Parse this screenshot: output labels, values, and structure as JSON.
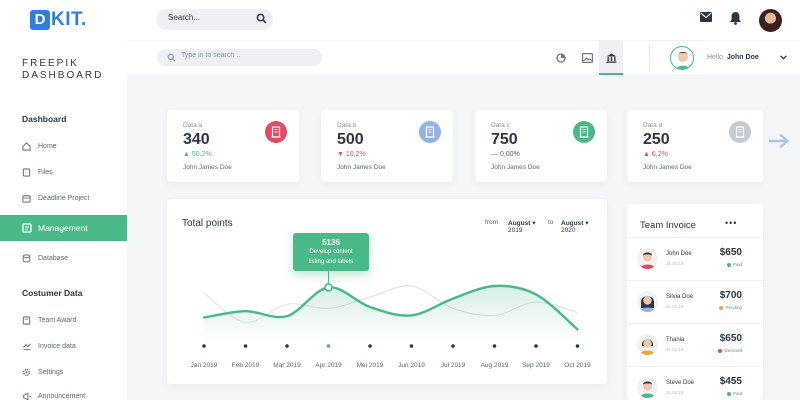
{
  "colors": {
    "accent": "#49b987",
    "brand": "#2f7de1",
    "danger": "#e8495f",
    "warning": "#f0a733",
    "info": "#8fb3e8"
  },
  "header": {
    "logo": "DKIT.",
    "search_placeholder": "Search..."
  },
  "sidebar": {
    "brand_line1": "FREEPIK",
    "brand_line2": "DASHBOARD",
    "section1": "Dashboard",
    "items1": [
      {
        "label": "Home",
        "icon": "home-icon"
      },
      {
        "label": "Files",
        "icon": "files-icon"
      },
      {
        "label": "Deadline Project",
        "icon": "calendar-icon"
      },
      {
        "label": "Management",
        "icon": "management-icon"
      },
      {
        "label": "Database",
        "icon": "database-icon"
      }
    ],
    "section2": "Costumer Data",
    "items2": [
      {
        "label": "Team Award",
        "icon": "award-icon"
      },
      {
        "label": "Invoice data",
        "icon": "invoice-icon"
      },
      {
        "label": "Settings",
        "icon": "gear-icon"
      },
      {
        "label": "Announcement",
        "icon": "megaphone-icon"
      }
    ]
  },
  "subheader": {
    "search_placeholder": "Type in to search ..",
    "greeting": "Hello,",
    "user_name": "John Doe"
  },
  "stats": [
    {
      "label": "Data a",
      "value": "340",
      "change": "50,2%",
      "direction": "up",
      "owner": "John James Doe",
      "color": "#e8495f"
    },
    {
      "label": "Data b",
      "value": "500",
      "change": "10,2%",
      "direction": "down",
      "owner": "John James Doe",
      "color": "#8fb3e8"
    },
    {
      "label": "Data c",
      "value": "750",
      "change": "0,00%",
      "direction": "flat",
      "owner": "John James Doe",
      "color": "#49b987"
    },
    {
      "label": "Data d",
      "value": "250",
      "change": "6,2%",
      "direction": "up",
      "owner": "John James Doe",
      "color": "#c5cbd3"
    }
  ],
  "chart": {
    "title": "Total points",
    "from_label": "from",
    "from_month": "August",
    "from_year": "2019",
    "to_label": "to",
    "to_month": "August",
    "to_year": "2020",
    "tooltip_value": "5136",
    "tooltip_line1": "Develop content",
    "tooltip_line2": "listing and labels"
  },
  "chart_data": {
    "type": "line",
    "categories": [
      "Jan 2019",
      "Feb 2019",
      "Mar 2019",
      "Apr 2019",
      "Mei 2019",
      "Jun 2019",
      "Jul 2019",
      "Aug 2019",
      "Sep 2019",
      "Oct 2019"
    ],
    "series": [
      {
        "values": [
          35,
          44,
          37,
          78,
          50,
          38,
          62,
          80,
          68,
          18
        ]
      },
      {
        "values": [
          70,
          28,
          54,
          48,
          64,
          80,
          48,
          38,
          57,
          42
        ]
      }
    ],
    "highlight_index": 3,
    "ylim": [
      0,
      100
    ],
    "grid": false,
    "legend": "none"
  },
  "team": {
    "title": "Team Invoice",
    "more": "•••",
    "rows": [
      {
        "name": "John Doe",
        "date": "21.01.19",
        "amount": "$650",
        "status": "Paid",
        "status_color": "#49b987"
      },
      {
        "name": "Silvia Doe",
        "date": "21.01.19",
        "amount": "$700",
        "status": "Pending",
        "status_color": "#f0a733"
      },
      {
        "name": "Thania",
        "date": "21.01.19",
        "amount": "$650",
        "status": "Declined",
        "status_color": "#e8495f"
      },
      {
        "name": "Steve Doe",
        "date": "21.01.19",
        "amount": "$455",
        "status": "Paid",
        "status_color": "#49b987"
      }
    ]
  }
}
